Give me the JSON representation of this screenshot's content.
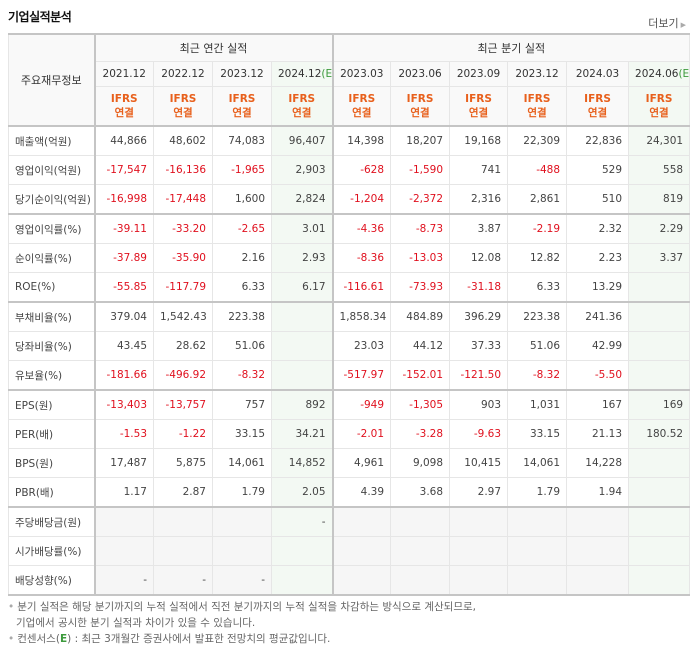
{
  "header": {
    "title": "기업실적분석",
    "more_label": "더보기"
  },
  "table": {
    "corner_label": "주요재무정보",
    "groups": [
      {
        "label": "최근 연간 실적",
        "span": 4
      },
      {
        "label": "최근 분기 실적",
        "span": 6
      }
    ],
    "periods": [
      {
        "label": "2021.12",
        "est": false
      },
      {
        "label": "2022.12",
        "est": false
      },
      {
        "label": "2023.12",
        "est": false
      },
      {
        "label": "2024.12",
        "est": true
      },
      {
        "label": "2023.03",
        "est": false
      },
      {
        "label": "2023.06",
        "est": false
      },
      {
        "label": "2023.09",
        "est": false
      },
      {
        "label": "2023.12",
        "est": false
      },
      {
        "label": "2024.03",
        "est": false
      },
      {
        "label": "2024.06",
        "est": true
      }
    ],
    "est_mark": "(E)",
    "ifrs_line1": "IFRS",
    "ifrs_line2": "연결",
    "rows": [
      {
        "label": "매출액(억원)",
        "values": [
          "44,866",
          "48,602",
          "74,083",
          "96,407",
          "14,398",
          "18,207",
          "19,168",
          "22,309",
          "22,836",
          "24,301"
        ]
      },
      {
        "label": "영업이익(억원)",
        "values": [
          "-17,547",
          "-16,136",
          "-1,965",
          "2,903",
          "-628",
          "-1,590",
          "741",
          "-488",
          "529",
          "558"
        ]
      },
      {
        "label": "당기순이익(억원)",
        "values": [
          "-16,998",
          "-17,448",
          "1,600",
          "2,824",
          "-1,204",
          "-2,372",
          "2,316",
          "2,861",
          "510",
          "819"
        ]
      },
      {
        "label": "영업이익률(%)",
        "values": [
          "-39.11",
          "-33.20",
          "-2.65",
          "3.01",
          "-4.36",
          "-8.73",
          "3.87",
          "-2.19",
          "2.32",
          "2.29"
        ]
      },
      {
        "label": "순이익률(%)",
        "values": [
          "-37.89",
          "-35.90",
          "2.16",
          "2.93",
          "-8.36",
          "-13.03",
          "12.08",
          "12.82",
          "2.23",
          "3.37"
        ]
      },
      {
        "label": "ROE(%)",
        "values": [
          "-55.85",
          "-117.79",
          "6.33",
          "6.17",
          "-116.61",
          "-73.93",
          "-31.18",
          "6.33",
          "13.29",
          ""
        ]
      },
      {
        "label": "부채비율(%)",
        "values": [
          "379.04",
          "1,542.43",
          "223.38",
          "",
          "1,858.34",
          "484.89",
          "396.29",
          "223.38",
          "241.36",
          ""
        ]
      },
      {
        "label": "당좌비율(%)",
        "values": [
          "43.45",
          "28.62",
          "51.06",
          "",
          "23.03",
          "44.12",
          "37.33",
          "51.06",
          "42.99",
          ""
        ]
      },
      {
        "label": "유보율(%)",
        "values": [
          "-181.66",
          "-496.92",
          "-8.32",
          "",
          "-517.97",
          "-152.01",
          "-121.50",
          "-8.32",
          "-5.50",
          ""
        ]
      },
      {
        "label": "EPS(원)",
        "values": [
          "-13,403",
          "-13,757",
          "757",
          "892",
          "-949",
          "-1,305",
          "903",
          "1,031",
          "167",
          "169"
        ]
      },
      {
        "label": "PER(배)",
        "values": [
          "-1.53",
          "-1.22",
          "33.15",
          "34.21",
          "-2.01",
          "-3.28",
          "-9.63",
          "33.15",
          "21.13",
          "180.52"
        ]
      },
      {
        "label": "BPS(원)",
        "values": [
          "17,487",
          "5,875",
          "14,061",
          "14,852",
          "4,961",
          "9,098",
          "10,415",
          "14,061",
          "14,228",
          ""
        ]
      },
      {
        "label": "PBR(배)",
        "values": [
          "1.17",
          "2.87",
          "1.79",
          "2.05",
          "4.39",
          "3.68",
          "2.97",
          "1.79",
          "1.94",
          ""
        ]
      },
      {
        "label": "주당배당금(원)",
        "values": [
          "",
          "",
          "",
          "-",
          "",
          "",
          "",
          "",
          "",
          ""
        ]
      },
      {
        "label": "시가배당률(%)",
        "values": [
          "",
          "",
          "",
          "",
          "",
          "",
          "",
          "",
          "",
          ""
        ]
      },
      {
        "label": "배당성향(%)",
        "values": [
          "-",
          "-",
          "-",
          "",
          "",
          "",
          "",
          "",
          "",
          ""
        ]
      }
    ]
  },
  "notes": {
    "line1": "분기 실적은 해당 분기까지의 누적 실적에서 직전 분기까지의 누적 실적을 차감하는 방식으로 계산되므로,",
    "line2": "기업에서 공시한 분기 실적과 차이가 있을 수 있습니다.",
    "line3_pre": "컨센서스(",
    "line3_e": "E",
    "line3_post": ") : 최근 3개월간 증권사에서 발표한 전망치의 평균값입니다."
  },
  "colors": {
    "negative": "#e0101e",
    "ifrs": "#e8601c",
    "estimate": "#3c9a3c",
    "estimate_bg": "#f3f9f3"
  }
}
